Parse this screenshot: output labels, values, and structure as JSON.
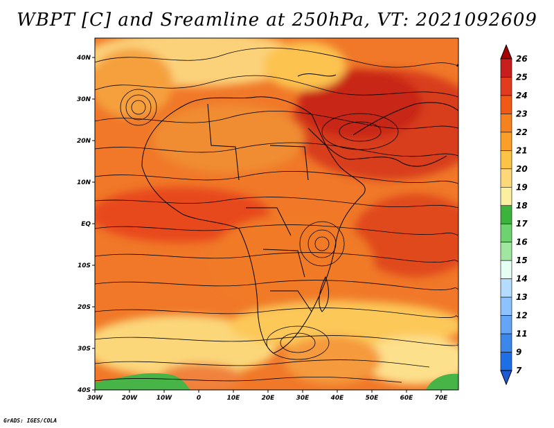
{
  "title": "WBPT [C] and Sreamline at 250hPa, VT: 2021092609",
  "credit": "GrADS: IGES/COLA",
  "map": {
    "lon_range": [
      -30,
      75
    ],
    "lat_range": [
      -40,
      45
    ],
    "lon_ticks": [
      "30W",
      "20W",
      "10W",
      "0",
      "10E",
      "20E",
      "30E",
      "40E",
      "50E",
      "60E",
      "70E"
    ],
    "lat_ticks": [
      "40N",
      "30N",
      "20N",
      "10N",
      "EQ",
      "10S",
      "20S",
      "30S",
      "40S"
    ],
    "field": "wet-bulb potential temperature with streamlines",
    "level": "250hPa"
  },
  "colorbar": {
    "levels": [
      "26",
      "25",
      "24",
      "23",
      "22",
      "21",
      "20",
      "19",
      "18",
      "17",
      "16",
      "15",
      "14",
      "13",
      "12",
      "11",
      "9",
      "7"
    ],
    "colors": [
      "#a50000",
      "#c81e1e",
      "#e23c1e",
      "#f05a14",
      "#f5821e",
      "#fa9f28",
      "#fcc346",
      "#fdd778",
      "#fbf0a0",
      "#3cb43c",
      "#6ed26e",
      "#a0e6a0",
      "#e6fff5",
      "#b4dcff",
      "#8cc3ff",
      "#64a5f5",
      "#3c87ea",
      "#1e6ee6",
      "#1e5ad2"
    ]
  }
}
